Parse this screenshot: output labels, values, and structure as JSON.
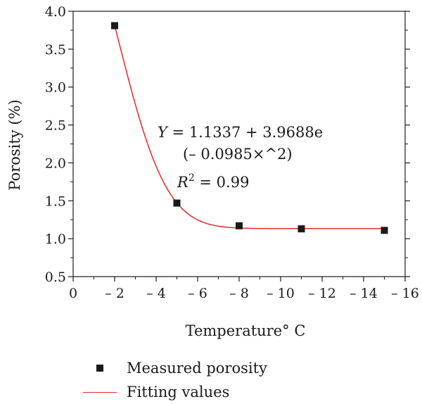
{
  "chart_data": {
    "type": "scatter",
    "xlabel": "Temperature° C",
    "ylabel": "Porosity (%)",
    "xlim": [
      0,
      -16
    ],
    "ylim": [
      0.5,
      4.0
    ],
    "x_ticks": [
      0,
      -2,
      -4,
      -6,
      -8,
      -10,
      -12,
      -14,
      -16
    ],
    "x_tick_labels": [
      "0",
      "– 2",
      "– 4",
      "– 6",
      "– 8",
      "– 10",
      "– 12",
      "– 14",
      "– 16"
    ],
    "y_ticks": [
      0.5,
      1.0,
      1.5,
      2.0,
      2.5,
      3.0,
      3.5,
      4.0
    ],
    "y_tick_labels": [
      "0.5",
      "1.0",
      "1.5",
      "2.0",
      "2.5",
      "3.0",
      "3.5",
      "4.0"
    ],
    "grid": false,
    "legend_position": "bottom",
    "series": [
      {
        "name": "Measured porosity",
        "kind": "scatter",
        "marker": "square",
        "color": "#1a1a1a",
        "x": [
          -2,
          -5,
          -8,
          -11,
          -15
        ],
        "y": [
          3.81,
          1.47,
          1.17,
          1.13,
          1.11
        ]
      },
      {
        "name": "Fitting values",
        "kind": "line",
        "color": "#e8292a",
        "equation": {
          "a": 1.1337,
          "b": 3.9688,
          "c": 0.0985
        }
      }
    ],
    "annotations": {
      "eq_line1_lhs": "Y",
      "eq_line1_rhs": " = 1.1337 + 3.9688e",
      "eq_line2": "(– 0.0985×^2)",
      "r2_lhs": "R",
      "r2_sup": "2",
      "r2_rhs": " = 0.99"
    }
  }
}
